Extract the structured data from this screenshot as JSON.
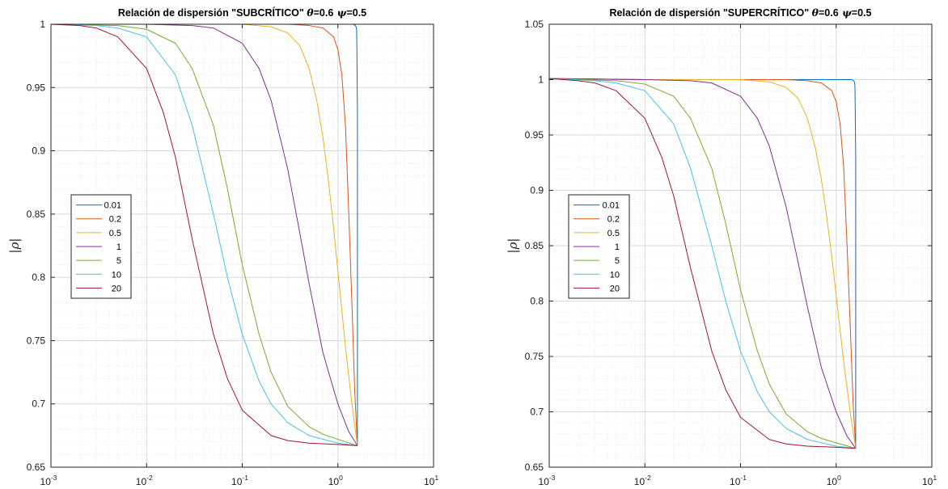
{
  "chart_data": [
    {
      "type": "line",
      "title": "Relación de dispersión \"SUBCRÍTICO\"",
      "title_params": [
        {
          "symbol": "θ",
          "text": "=0.6"
        },
        {
          "symbol": "ψ",
          "text": "=0.5"
        }
      ],
      "xlabel": "",
      "ylabel": "|ρ|",
      "xscale": "log",
      "xlim": [
        0.001,
        10
      ],
      "ylim": [
        0.65,
        1.0
      ],
      "xtick_base": "10",
      "xtick_exponents": [
        "-3",
        "-2",
        "-1",
        "0",
        "1"
      ],
      "yticks": [
        "0.65",
        "0.7",
        "0.75",
        "0.8",
        "0.85",
        "0.9",
        "0.95",
        "1"
      ],
      "grid": true,
      "minor_grid": true,
      "legend_position": "left",
      "series": [
        {
          "name": "0.01",
          "color": "#0072BD",
          "x": [
            0.001,
            0.01,
            0.1,
            0.5,
            1.0,
            1.3,
            1.45,
            1.52,
            1.55,
            1.57,
            1.58,
            1.6,
            1.6,
            1.6
          ],
          "y": [
            1.0,
            1.0,
            1.0,
            1.0,
            1.0,
            1.0,
            1.0,
            0.999,
            0.998,
            0.995,
            0.98,
            0.93,
            0.8,
            0.667
          ]
        },
        {
          "name": "0.2",
          "color": "#D95319",
          "x": [
            0.001,
            0.01,
            0.1,
            0.3,
            0.5,
            0.7,
            0.9,
            1.0,
            1.1,
            1.2,
            1.3,
            1.4,
            1.5,
            1.6
          ],
          "y": [
            1.0,
            1.0,
            1.0,
            1.0,
            0.999,
            0.997,
            0.99,
            0.98,
            0.96,
            0.92,
            0.85,
            0.78,
            0.71,
            0.667
          ]
        },
        {
          "name": "0.5",
          "color": "#EDB120",
          "x": [
            0.001,
            0.01,
            0.1,
            0.2,
            0.3,
            0.4,
            0.5,
            0.6,
            0.7,
            0.8,
            0.9,
            1.0,
            1.2,
            1.4,
            1.6
          ],
          "y": [
            1.0,
            1.0,
            1.0,
            0.998,
            0.993,
            0.983,
            0.965,
            0.94,
            0.91,
            0.875,
            0.84,
            0.805,
            0.745,
            0.7,
            0.667
          ]
        },
        {
          "name": "1",
          "color": "#7E2F8E",
          "x": [
            0.001,
            0.01,
            0.03,
            0.05,
            0.1,
            0.15,
            0.2,
            0.3,
            0.4,
            0.5,
            0.7,
            1.0,
            1.3,
            1.6
          ],
          "y": [
            1.0,
            1.0,
            0.999,
            0.997,
            0.985,
            0.965,
            0.94,
            0.885,
            0.835,
            0.795,
            0.74,
            0.7,
            0.678,
            0.667
          ]
        },
        {
          "name": "5",
          "color": "#77AC30",
          "x": [
            0.001,
            0.005,
            0.01,
            0.02,
            0.03,
            0.05,
            0.07,
            0.1,
            0.15,
            0.2,
            0.3,
            0.5,
            0.7,
            1.0,
            1.6
          ],
          "y": [
            1.0,
            0.999,
            0.996,
            0.985,
            0.965,
            0.92,
            0.87,
            0.81,
            0.755,
            0.725,
            0.698,
            0.682,
            0.676,
            0.672,
            0.667
          ]
        },
        {
          "name": "10",
          "color": "#4DBEEE",
          "x": [
            0.001,
            0.003,
            0.005,
            0.01,
            0.02,
            0.03,
            0.05,
            0.07,
            0.1,
            0.15,
            0.2,
            0.3,
            0.5,
            1.0,
            1.6
          ],
          "y": [
            1.0,
            0.999,
            0.997,
            0.99,
            0.96,
            0.92,
            0.85,
            0.8,
            0.755,
            0.718,
            0.7,
            0.685,
            0.675,
            0.669,
            0.667
          ]
        },
        {
          "name": "20",
          "color": "#A2142F",
          "x": [
            0.001,
            0.002,
            0.003,
            0.005,
            0.01,
            0.015,
            0.02,
            0.03,
            0.05,
            0.07,
            0.1,
            0.2,
            0.3,
            0.5,
            1.0,
            1.6
          ],
          "y": [
            1.0,
            0.999,
            0.997,
            0.99,
            0.965,
            0.93,
            0.895,
            0.83,
            0.755,
            0.72,
            0.695,
            0.675,
            0.671,
            0.669,
            0.668,
            0.667
          ]
        }
      ]
    },
    {
      "type": "line",
      "title": "Relación de dispersión \"SUPERCRÍTICO\"",
      "title_params": [
        {
          "symbol": "θ",
          "text": "=0.6"
        },
        {
          "symbol": "ψ",
          "text": "=0.5"
        }
      ],
      "xlabel": "",
      "ylabel": "|ρ|",
      "xscale": "log",
      "xlim": [
        0.001,
        10
      ],
      "ylim": [
        0.65,
        1.05
      ],
      "xtick_base": "10",
      "xtick_exponents": [
        "-3",
        "-2",
        "-1",
        "0",
        "1"
      ],
      "yticks": [
        "0.65",
        "0.7",
        "0.75",
        "0.8",
        "0.85",
        "0.9",
        "0.95",
        "1",
        "1.05"
      ],
      "grid": true,
      "minor_grid": true,
      "legend_position": "left",
      "series": [
        {
          "name": "0.01",
          "color": "#0072BD",
          "x": [
            0.001,
            0.01,
            0.1,
            0.5,
            1.0,
            1.3,
            1.45,
            1.52,
            1.55,
            1.57,
            1.58,
            1.6,
            1.6,
            1.6
          ],
          "y": [
            1.001,
            1.0,
            1.0,
            1.0,
            1.0,
            1.0,
            1.0,
            0.999,
            0.998,
            0.995,
            0.98,
            0.93,
            0.8,
            0.667
          ]
        },
        {
          "name": "0.2",
          "color": "#D95319",
          "x": [
            0.001,
            0.01,
            0.1,
            0.3,
            0.5,
            0.7,
            0.9,
            1.0,
            1.1,
            1.2,
            1.3,
            1.4,
            1.5,
            1.6
          ],
          "y": [
            1.001,
            1.0,
            1.0,
            1.0,
            0.999,
            0.997,
            0.99,
            0.98,
            0.96,
            0.92,
            0.85,
            0.78,
            0.71,
            0.667
          ]
        },
        {
          "name": "0.5",
          "color": "#EDB120",
          "x": [
            0.001,
            0.01,
            0.1,
            0.2,
            0.3,
            0.4,
            0.5,
            0.6,
            0.7,
            0.8,
            0.9,
            1.0,
            1.2,
            1.4,
            1.6
          ],
          "y": [
            1.001,
            1.0,
            1.0,
            0.998,
            0.993,
            0.983,
            0.965,
            0.94,
            0.91,
            0.875,
            0.84,
            0.805,
            0.745,
            0.7,
            0.667
          ]
        },
        {
          "name": "1",
          "color": "#7E2F8E",
          "x": [
            0.001,
            0.01,
            0.03,
            0.05,
            0.1,
            0.15,
            0.2,
            0.3,
            0.4,
            0.5,
            0.7,
            1.0,
            1.3,
            1.6
          ],
          "y": [
            1.001,
            1.0,
            0.999,
            0.997,
            0.985,
            0.965,
            0.94,
            0.885,
            0.835,
            0.795,
            0.74,
            0.7,
            0.678,
            0.667
          ]
        },
        {
          "name": "5",
          "color": "#77AC30",
          "x": [
            0.001,
            0.005,
            0.01,
            0.02,
            0.03,
            0.05,
            0.07,
            0.1,
            0.15,
            0.2,
            0.3,
            0.5,
            0.7,
            1.0,
            1.6
          ],
          "y": [
            1.001,
            0.999,
            0.996,
            0.985,
            0.965,
            0.92,
            0.87,
            0.81,
            0.755,
            0.725,
            0.698,
            0.682,
            0.676,
            0.672,
            0.667
          ]
        },
        {
          "name": "10",
          "color": "#4DBEEE",
          "x": [
            0.001,
            0.003,
            0.005,
            0.01,
            0.02,
            0.03,
            0.05,
            0.07,
            0.1,
            0.15,
            0.2,
            0.3,
            0.5,
            1.0,
            1.6
          ],
          "y": [
            1.001,
            0.999,
            0.997,
            0.99,
            0.96,
            0.92,
            0.85,
            0.8,
            0.755,
            0.718,
            0.7,
            0.685,
            0.675,
            0.669,
            0.667
          ]
        },
        {
          "name": "20",
          "color": "#A2142F",
          "x": [
            0.001,
            0.002,
            0.003,
            0.005,
            0.01,
            0.015,
            0.02,
            0.03,
            0.05,
            0.07,
            0.1,
            0.2,
            0.3,
            0.5,
            1.0,
            1.6
          ],
          "y": [
            1.001,
            0.999,
            0.997,
            0.99,
            0.965,
            0.93,
            0.895,
            0.83,
            0.755,
            0.72,
            0.695,
            0.675,
            0.671,
            0.669,
            0.668,
            0.667
          ]
        }
      ]
    }
  ]
}
